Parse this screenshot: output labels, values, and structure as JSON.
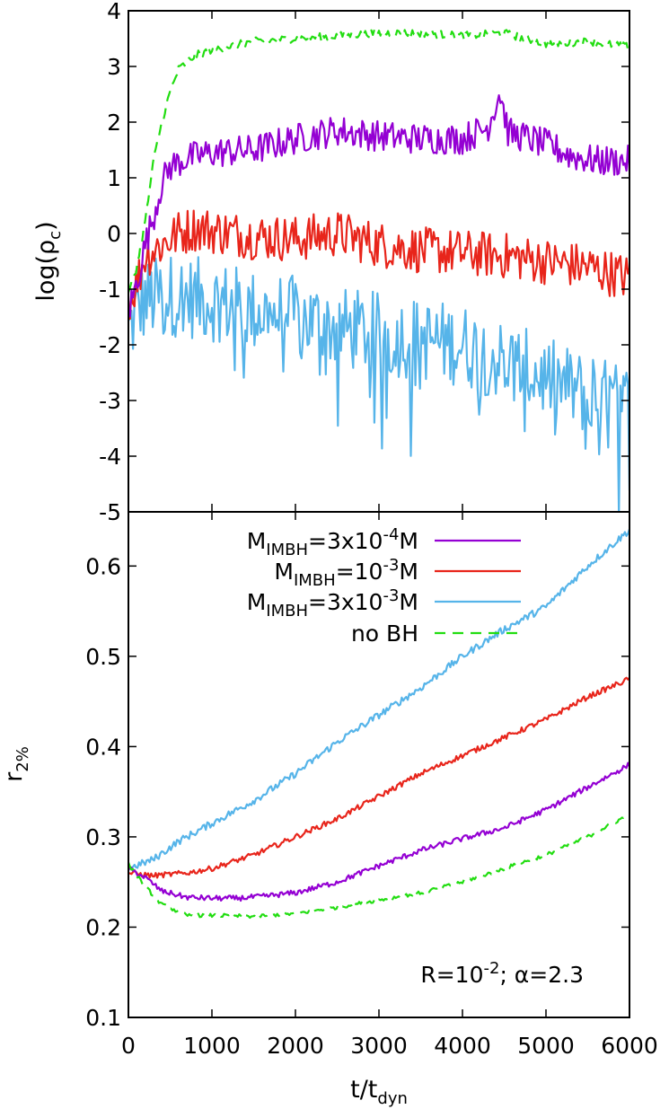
{
  "chart_data": [
    {
      "type": "line",
      "panel": "top",
      "ylabel": "log(ρ",
      "ylabel_sub": "c",
      "ylabel_end": ")",
      "xlim": [
        0,
        6000
      ],
      "ylim": [
        -5,
        4
      ],
      "yticks": [
        "4",
        "3",
        "2",
        "1",
        "0",
        "-1",
        "-2",
        "-3",
        "-4",
        "-5"
      ],
      "series": [
        {
          "key": "imbh_3e-4",
          "color": "#9400d3",
          "dash": false,
          "x": [
            0,
            100,
            200,
            300,
            400,
            500,
            700,
            1000,
            1500,
            2000,
            2500,
            3000,
            3500,
            4000,
            4300,
            4450,
            4550,
            4700,
            5000,
            5300,
            5600,
            6000
          ],
          "y": [
            -1.4,
            -0.9,
            -0.2,
            0.3,
            0.9,
            1.2,
            1.35,
            1.45,
            1.5,
            1.7,
            1.85,
            1.75,
            1.7,
            1.7,
            1.9,
            2.55,
            1.8,
            1.75,
            1.6,
            1.4,
            1.3,
            1.3
          ],
          "noise": 0.28
        },
        {
          "key": "imbh_1e-3",
          "color": "#e8251b",
          "dash": false,
          "x": [
            0,
            100,
            200,
            400,
            600,
            800,
            1000,
            1500,
            2000,
            2500,
            3000,
            3500,
            4000,
            4500,
            5000,
            5500,
            6000
          ],
          "y": [
            -1.2,
            -0.9,
            -0.4,
            -0.2,
            0.0,
            0.1,
            0.05,
            -0.05,
            -0.1,
            0.0,
            -0.2,
            -0.3,
            -0.35,
            -0.4,
            -0.5,
            -0.6,
            -0.8
          ],
          "noise": 0.42
        },
        {
          "key": "imbh_3e-3",
          "color": "#56b4e9",
          "dash": false,
          "x": [
            0,
            100,
            200,
            500,
            1000,
            1500,
            2000,
            2500,
            3000,
            3500,
            4000,
            4500,
            5000,
            5500,
            6000
          ],
          "y": [
            -1.8,
            -1.4,
            -1.2,
            -1.1,
            -1.2,
            -1.4,
            -1.5,
            -1.7,
            -1.8,
            -1.9,
            -2.0,
            -2.3,
            -2.6,
            -2.9,
            -3.1
          ],
          "noise": 0.75
        },
        {
          "key": "nobh",
          "color": "#22dd11",
          "dash": true,
          "x": [
            0,
            100,
            200,
            300,
            400,
            500,
            600,
            800,
            1000,
            1500,
            2000,
            2500,
            3000,
            3500,
            4000,
            4500,
            5000,
            5500,
            6000
          ],
          "y": [
            -1.1,
            -0.6,
            0.2,
            1.3,
            2.0,
            2.55,
            2.95,
            3.2,
            3.3,
            3.45,
            3.5,
            3.55,
            3.6,
            3.6,
            3.55,
            3.6,
            3.4,
            3.45,
            3.35
          ],
          "noise": 0.07
        }
      ]
    },
    {
      "type": "line",
      "panel": "bottom",
      "xlabel": "t/t",
      "xlabel_sub": "dyn",
      "ylabel": "r",
      "ylabel_sub": "2%",
      "xlim": [
        0,
        6000
      ],
      "ylim": [
        0.1,
        0.66
      ],
      "xticks": [
        "0",
        "1000",
        "2000",
        "3000",
        "4000",
        "5000",
        "6000"
      ],
      "yticks": [
        "0.6",
        "0.5",
        "0.4",
        "0.3",
        "0.2",
        "0.1"
      ],
      "annotation": {
        "prefix": "R=10",
        "sup": "-2",
        "suffix": "; α=2.3"
      },
      "series": [
        {
          "key": "imbh_3e-4",
          "color": "#9400d3",
          "dash": false,
          "x": [
            0,
            200,
            400,
            700,
            1000,
            1300,
            1600,
            2000,
            2500,
            3000,
            3500,
            4000,
            4500,
            5000,
            5500,
            6000
          ],
          "y": [
            0.265,
            0.255,
            0.24,
            0.233,
            0.232,
            0.232,
            0.234,
            0.238,
            0.25,
            0.268,
            0.285,
            0.298,
            0.31,
            0.33,
            0.355,
            0.38
          ],
          "noise": 0.003
        },
        {
          "key": "imbh_1e-3",
          "color": "#e8251b",
          "dash": false,
          "x": [
            0,
            300,
            700,
            1000,
            1500,
            2000,
            2500,
            3000,
            3500,
            4000,
            4500,
            5000,
            5500,
            6000
          ],
          "y": [
            0.26,
            0.257,
            0.26,
            0.265,
            0.28,
            0.3,
            0.32,
            0.345,
            0.37,
            0.39,
            0.41,
            0.43,
            0.455,
            0.475
          ],
          "noise": 0.003
        },
        {
          "key": "imbh_3e-3",
          "color": "#56b4e9",
          "dash": false,
          "x": [
            0,
            300,
            600,
            1000,
            1500,
            2000,
            2500,
            3000,
            3500,
            4000,
            4500,
            5000,
            5500,
            6000
          ],
          "y": [
            0.265,
            0.275,
            0.295,
            0.315,
            0.34,
            0.37,
            0.405,
            0.435,
            0.465,
            0.5,
            0.53,
            0.555,
            0.6,
            0.64
          ],
          "noise": 0.004
        },
        {
          "key": "nobh",
          "color": "#22dd11",
          "dash": true,
          "x": [
            0,
            200,
            400,
            700,
            1000,
            1500,
            2000,
            2500,
            3000,
            3500,
            4000,
            4500,
            5000,
            5500,
            6000
          ],
          "y": [
            0.27,
            0.245,
            0.225,
            0.213,
            0.213,
            0.212,
            0.215,
            0.222,
            0.23,
            0.238,
            0.25,
            0.265,
            0.28,
            0.3,
            0.325
          ],
          "noise": 0.002
        }
      ]
    }
  ],
  "legend": [
    {
      "key": "imbh_3e-4",
      "main": "M",
      "sub": "IMBH",
      "rest": "=3x10",
      "sup": "-4",
      "tail": "M",
      "color": "#9400d3",
      "dash": false
    },
    {
      "key": "imbh_1e-3",
      "main": "M",
      "sub": "IMBH",
      "rest": "=10",
      "sup": "-3",
      "tail": "M",
      "color": "#e8251b",
      "dash": false
    },
    {
      "key": "imbh_3e-3",
      "main": "M",
      "sub": "IMBH",
      "rest": "=3x10",
      "sup": "-3",
      "tail": "M",
      "color": "#56b4e9",
      "dash": false
    },
    {
      "key": "nobh",
      "main": "no BH",
      "sub": "",
      "rest": "",
      "sup": "",
      "tail": "",
      "color": "#22dd11",
      "dash": true
    }
  ]
}
